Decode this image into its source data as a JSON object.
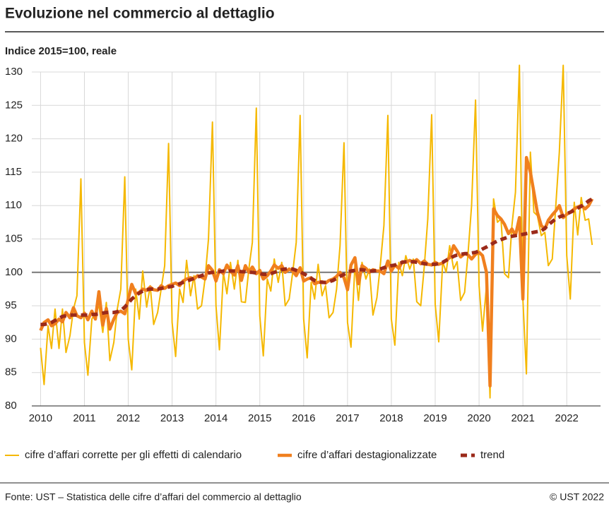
{
  "chart_data": {
    "type": "line",
    "title": "Evoluzione nel commercio al dettaglio",
    "subtitle": "Indice 2015=100, reale",
    "source": "Fonte: UST – Statistica delle cifre d’affari del commercio al dettaglio",
    "copyright": "© UST 2022",
    "xlim": [
      2009.8,
      2022.77
    ],
    "xticks": [
      2010,
      2011,
      2012,
      2013,
      2014,
      2015,
      2016,
      2017,
      2018,
      2019,
      2020,
      2021,
      2022
    ],
    "ylim": [
      80,
      130
    ],
    "yticks": [
      80,
      85,
      90,
      95,
      100,
      105,
      110,
      115,
      120,
      125,
      130
    ],
    "grid": true,
    "reference_line": 100,
    "x": [
      2010,
      2010.08,
      2010.17,
      2010.25,
      2010.33,
      2010.42,
      2010.5,
      2010.58,
      2010.67,
      2010.75,
      2010.83,
      2010.92,
      2011,
      2011.08,
      2011.17,
      2011.25,
      2011.33,
      2011.42,
      2011.5,
      2011.58,
      2011.67,
      2011.75,
      2011.83,
      2011.92,
      2012,
      2012.08,
      2012.17,
      2012.25,
      2012.33,
      2012.42,
      2012.5,
      2012.58,
      2012.67,
      2012.75,
      2012.83,
      2012.92,
      2013,
      2013.08,
      2013.17,
      2013.25,
      2013.33,
      2013.42,
      2013.5,
      2013.58,
      2013.67,
      2013.75,
      2013.83,
      2013.92,
      2014,
      2014.08,
      2014.17,
      2014.25,
      2014.33,
      2014.42,
      2014.5,
      2014.58,
      2014.67,
      2014.75,
      2014.83,
      2014.92,
      2015,
      2015.08,
      2015.17,
      2015.25,
      2015.33,
      2015.42,
      2015.5,
      2015.58,
      2015.67,
      2015.75,
      2015.83,
      2015.92,
      2016,
      2016.08,
      2016.17,
      2016.25,
      2016.33,
      2016.42,
      2016.5,
      2016.58,
      2016.67,
      2016.75,
      2016.83,
      2016.92,
      2017,
      2017.08,
      2017.17,
      2017.25,
      2017.33,
      2017.42,
      2017.5,
      2017.58,
      2017.67,
      2017.75,
      2017.83,
      2017.92,
      2018,
      2018.08,
      2018.17,
      2018.25,
      2018.33,
      2018.42,
      2018.5,
      2018.58,
      2018.67,
      2018.75,
      2018.83,
      2018.92,
      2019,
      2019.08,
      2019.17,
      2019.25,
      2019.33,
      2019.42,
      2019.5,
      2019.58,
      2019.67,
      2019.75,
      2019.83,
      2019.92,
      2020,
      2020.08,
      2020.17,
      2020.25,
      2020.33,
      2020.42,
      2020.5,
      2020.58,
      2020.67,
      2020.75,
      2020.83,
      2020.92,
      2021,
      2021.08,
      2021.17,
      2021.25,
      2021.33,
      2021.42,
      2021.5,
      2021.58,
      2021.67,
      2021.75,
      2021.83,
      2021.92,
      2022,
      2022.08,
      2022.17,
      2022.25,
      2022.33,
      2022.42,
      2022.5,
      2022.58
    ],
    "series": [
      {
        "name": "cifre d’affari corrette per gli effetti di calendario",
        "color": "#f5b800",
        "dashed": false,
        "values": [
          88.7,
          83.2,
          92.0,
          88.6,
          94.5,
          88.6,
          94.5,
          88.0,
          90.5,
          94.5,
          96.5,
          114.0,
          89.5,
          84.6,
          93.0,
          94.0,
          95.0,
          91.0,
          95.5,
          86.8,
          89.5,
          94.5,
          97.5,
          114.3,
          90.0,
          85.4,
          97.5,
          93.0,
          100.2,
          94.8,
          98.0,
          92.2,
          94.0,
          97.5,
          101.0,
          119.3,
          92.5,
          87.4,
          97.5,
          95.5,
          101.8,
          96.5,
          99.5,
          94.5,
          95.0,
          99.0,
          105.0,
          122.5,
          95.0,
          88.4,
          100.0,
          96.8,
          101.5,
          97.5,
          101.8,
          95.6,
          95.5,
          100.5,
          104.5,
          124.6,
          93.5,
          87.5,
          99.0,
          97.2,
          102.0,
          98.5,
          101.5,
          95.0,
          96.0,
          100.0,
          104.5,
          123.5,
          93.0,
          87.2,
          98.5,
          96.0,
          101.2,
          96.5,
          98.0,
          93.2,
          94.0,
          97.5,
          104.0,
          119.4,
          92.5,
          88.8,
          101.2,
          95.8,
          101.5,
          99.0,
          100.5,
          93.6,
          96.2,
          101.2,
          107.0,
          123.5,
          93.0,
          89.1,
          101.5,
          99.5,
          102.5,
          100.5,
          102.0,
          95.6,
          95.0,
          100.8,
          108.0,
          123.6,
          95.2,
          89.6,
          101.6,
          100.0,
          104.0,
          100.5,
          101.6,
          95.8,
          97.0,
          103.0,
          110.0,
          125.8,
          98.0,
          91.2,
          98.0,
          81.2,
          111.0,
          107.5,
          108.0,
          99.8,
          99.2,
          107.0,
          112.0,
          131.0,
          96.0,
          84.8,
          118.0,
          109.0,
          108.5,
          105.5,
          106.0,
          101.0,
          102.0,
          110.0,
          118.0,
          131.0,
          102.5,
          96.0,
          110.5,
          105.6,
          111.2,
          107.8,
          108.0,
          104.1
        ]
      },
      {
        "name": "cifre d’affari destagionalizzate",
        "color": "#f07f1e",
        "dashed": false,
        "values": [
          91.3,
          92.5,
          92.9,
          92.0,
          92.3,
          93.0,
          92.6,
          94.0,
          93.2,
          94.7,
          93.5,
          93.2,
          93.9,
          92.9,
          94.2,
          93.0,
          97.1,
          92.1,
          94.6,
          91.5,
          93.0,
          94.0,
          94.2,
          93.8,
          96.0,
          98.2,
          96.8,
          97.0,
          97.5,
          97.3,
          97.8,
          97.4,
          97.3,
          98.0,
          97.6,
          98.0,
          98.2,
          98.4,
          98.0,
          98.7,
          99.0,
          99.2,
          99.0,
          99.5,
          99.3,
          99.0,
          101.0,
          100.3,
          98.7,
          100.4,
          99.8,
          101.1,
          100.2,
          99.6,
          101.0,
          98.8,
          101.0,
          100.0,
          100.8,
          99.8,
          100.3,
          99.0,
          99.5,
          100.2,
          101.1,
          100.6,
          101.0,
          100.0,
          100.5,
          100.2,
          99.5,
          100.7,
          98.7,
          99.0,
          99.2,
          98.3,
          98.5,
          98.6,
          98.4,
          98.8,
          99.0,
          99.4,
          100.0,
          99.2,
          97.4,
          101.1,
          102.2,
          98.3,
          101.0,
          100.6,
          100.0,
          100.4,
          100.2,
          100.2,
          99.8,
          101.7,
          100.2,
          101.1,
          100.6,
          101.6,
          101.5,
          101.8,
          101.5,
          101.9,
          101.3,
          101.7,
          101.2,
          101.1,
          101.5,
          101.2,
          101.4,
          101.8,
          102.2,
          104.0,
          103.2,
          102.3,
          102.8,
          102.6,
          102.0,
          102.7,
          103.0,
          102.5,
          100.0,
          83.0,
          109.5,
          108.5,
          108.0,
          107.2,
          105.8,
          106.5,
          105.5,
          108.2,
          96.0,
          117.2,
          115.0,
          112.0,
          109.0,
          107.0,
          106.5,
          107.8,
          108.6,
          109.2,
          110.0,
          108.2,
          108.7,
          109.0,
          109.5,
          109.8,
          110.0,
          109.5,
          110.0,
          111.0
        ]
      },
      {
        "name": "trend",
        "color": "#9b2a1a",
        "dashed": true,
        "values": [
          92.2,
          92.2,
          92.3,
          92.5,
          92.8,
          93.1,
          93.4,
          93.5,
          93.6,
          93.6,
          93.6,
          93.6,
          93.6,
          93.6,
          93.7,
          93.7,
          93.8,
          93.9,
          94.0,
          94.0,
          94.0,
          94.1,
          94.3,
          94.8,
          95.4,
          96.0,
          96.5,
          96.9,
          97.2,
          97.4,
          97.5,
          97.5,
          97.5,
          97.6,
          97.7,
          97.8,
          97.9,
          98.1,
          98.3,
          98.5,
          98.7,
          98.9,
          99.1,
          99.3,
          99.5,
          99.7,
          99.9,
          100.0,
          100.1,
          100.1,
          100.2,
          100.2,
          100.2,
          100.2,
          100.2,
          100.1,
          100.1,
          100.0,
          100.0,
          99.9,
          99.8,
          99.7,
          99.7,
          99.8,
          100.0,
          100.2,
          100.4,
          100.5,
          100.6,
          100.5,
          100.3,
          100.1,
          99.8,
          99.5,
          99.1,
          98.8,
          98.6,
          98.5,
          98.5,
          98.6,
          98.8,
          99.1,
          99.4,
          99.7,
          100.0,
          100.2,
          100.3,
          100.4,
          100.4,
          100.3,
          100.2,
          100.2,
          100.3,
          100.5,
          100.7,
          100.9,
          101.0,
          101.1,
          101.3,
          101.5,
          101.6,
          101.6,
          101.6,
          101.5,
          101.4,
          101.3,
          101.2,
          101.2,
          101.2,
          101.3,
          101.5,
          101.8,
          102.1,
          102.4,
          102.6,
          102.7,
          102.8,
          102.8,
          102.9,
          103.0,
          103.2,
          103.5,
          103.8,
          104.1,
          104.4,
          104.7,
          104.9,
          105.1,
          105.3,
          105.4,
          105.5,
          105.6,
          105.7,
          105.8,
          105.9,
          106.0,
          106.1,
          106.2,
          106.6,
          107.1,
          107.6,
          108.0,
          108.3,
          108.5,
          108.8,
          109.0,
          109.3,
          109.6,
          109.9,
          110.3,
          110.7,
          111.0
        ]
      }
    ]
  }
}
